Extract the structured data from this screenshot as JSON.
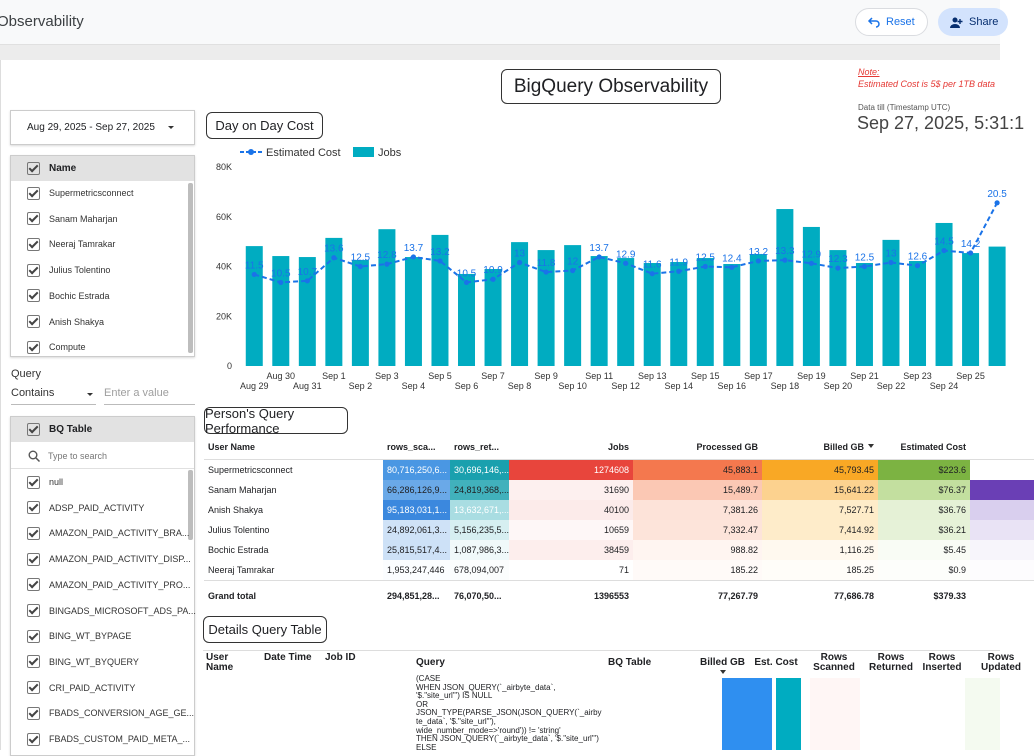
{
  "top_bar": {
    "title": "Observability",
    "buttons": [
      "Reset",
      "Share"
    ]
  },
  "report": {
    "title": "BigQuery Observability",
    "note_label": "Note:",
    "note_text": "Estimated Cost is 5$ per 1TB data",
    "data_till_label": "Data till (Timestamp UTC)",
    "data_till_value": "Sep 27, 2025, 5:31:1"
  },
  "filters": {
    "date_range": "Aug 29, 2025 - Sep 27, 2025",
    "name_filter": {
      "header": "Name",
      "items": [
        "Supermetricsconnect",
        "Sanam Maharjan",
        "Neeraj Tamrakar",
        "Julius Tolentino",
        "Bochic Estrada",
        "Anish Shakya",
        "Compute"
      ]
    },
    "query": {
      "label": "Query",
      "operator": "Contains",
      "placeholder": "Enter a value"
    },
    "bq_table": {
      "header": "BQ Table",
      "search_placeholder": "Type to search",
      "items": [
        "null",
        "ADSP_PAID_ACTIVITY",
        "AMAZON_PAID_ACTIVITY_BRA...",
        "AMAZON_PAID_ACTIVITY_DISP...",
        "AMAZON_PAID_ACTIVITY_PRO...",
        "BINGADS_MICROSOFT_ADS_PA...",
        "BING_WT_BYPAGE",
        "BING_WT_BYQUERY",
        "CRI_PAID_ACTIVITY",
        "FBADS_CONVERSION_AGE_GE...",
        "FBADS_CUSTOM_PAID_META_..."
      ]
    }
  },
  "chart_data": {
    "type": "combo",
    "title": "Day on Day Cost",
    "categories": [
      "Aug 29",
      "Aug 30",
      "Aug 31",
      "Sep 1",
      "Sep 2",
      "Sep 3",
      "Sep 4",
      "Sep 5",
      "Sep 6",
      "Sep 7",
      "Sep 8",
      "Sep 9",
      "Sep 10",
      "Sep 11",
      "Sep 12",
      "Sep 13",
      "Sep 14",
      "Sep 15",
      "Sep 16",
      "Sep 17",
      "Sep 18",
      "Sep 19",
      "Sep 20",
      "Sep 21",
      "Sep 22",
      "Sep 23",
      "Sep 24",
      "Sep 25",
      null
    ],
    "series": [
      {
        "name": "Estimated Cost",
        "type": "line",
        "axis": "y2",
        "color": "#1a73e8",
        "values": [
          11.5,
          10.5,
          10.7,
          13.6,
          12.5,
          12.8,
          13.7,
          13.2,
          10.5,
          10.9,
          13,
          11.8,
          12,
          13.7,
          12.9,
          11.6,
          11.9,
          12.5,
          12.4,
          13.2,
          13.3,
          12.9,
          12.3,
          12.5,
          13,
          12.6,
          14.5,
          14.2,
          20.5
        ]
      },
      {
        "name": "Jobs",
        "type": "bar",
        "color": "#00acc1",
        "values": [
          48200,
          44200,
          43800,
          51500,
          42600,
          55000,
          43800,
          52700,
          37000,
          39000,
          49800,
          46600,
          48600,
          44200,
          43400,
          41400,
          41800,
          43400,
          41000,
          45000,
          63100,
          55900,
          46600,
          41400,
          50700,
          42200,
          57500,
          45400,
          48000
        ]
      }
    ],
    "ylim": [
      0,
      80000
    ],
    "yticks": [
      0,
      {
        "value": 20000,
        "label": "20K"
      },
      {
        "value": 40000,
        "label": "40K"
      },
      {
        "value": 60000,
        "label": "60K"
      },
      {
        "value": 80000,
        "label": "80K"
      }
    ],
    "y2lim": [
      0,
      25
    ],
    "legend": "top-left"
  },
  "performance_table": {
    "title": "Person's Query Performance",
    "columns": [
      "User Name",
      "rows_sca...",
      "rows_ret...",
      "Jobs",
      "Processed GB",
      "Billed GB",
      "Estimated Cost"
    ],
    "rows": [
      [
        "Supermetricsconnect",
        "80,716,250,6...",
        "30,696,146,...",
        "1274608",
        "45,883.1",
        "45,793.45",
        "$223.6"
      ],
      [
        "Sanam Maharjan",
        "66,286,126,9...",
        "24,819,368,...",
        "31690",
        "15,489.7",
        "15,641.22",
        "$76.37"
      ],
      [
        "Anish Shakya",
        "95,183,031,1...",
        "13,632,671,...",
        "40100",
        "7,381.26",
        "7,527.71",
        "$36.76"
      ],
      [
        "Julius Tolentino",
        "24,892,061,3...",
        "5,156,235,5...",
        "10659",
        "7,332.47",
        "7,414.92",
        "$36.21"
      ],
      [
        "Bochic Estrada",
        "25,815,517,4...",
        "1,087,986,3...",
        "38459",
        "988.82",
        "1,116.25",
        "$5.45"
      ],
      [
        "Neeraj Tamrakar",
        "1,953,247,446",
        "678,094,007",
        "71",
        "185.22",
        "185.25",
        "$0.9"
      ]
    ],
    "total": [
      "Grand total",
      "294,851,28...",
      "76,070,50...",
      "1396553",
      "77,267.79",
      "77,686.78",
      "$379.33"
    ]
  },
  "details_table": {
    "title": "Details Query Table",
    "columns": [
      "User Name",
      "Date Time",
      "Job ID",
      "Query",
      "BQ Table",
      "Billed GB",
      "Est. Cost",
      "Rows Scanned",
      "Rows Returned",
      "Rows Inserted",
      "Rows Updated"
    ],
    "query_lines": [
      "(CASE",
      "WHEN JSON_QUERY(`_airbyte_data`,",
      "'$.\"site_url\"') IS NULL",
      "OR",
      "JSON_TYPE(PARSE_JSON(JSON_QUERY(`_airby",
      "te_data`, '$.\"site_url\"'),",
      "wide_number_mode=>'round')) != 'string'",
      "THEN JSON_QUERY(`_airbyte_data`, '$.\"site_url\"')",
      "ELSE"
    ]
  }
}
